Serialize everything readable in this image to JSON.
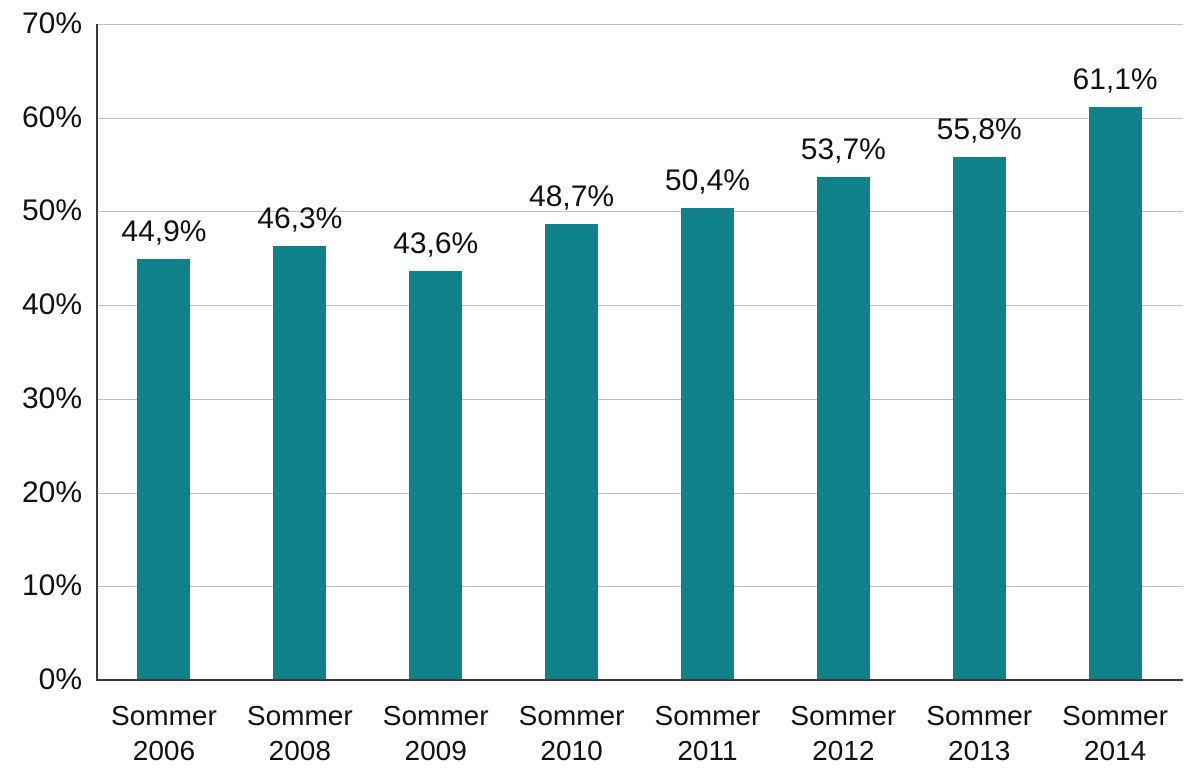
{
  "chart_data": {
    "type": "bar",
    "title": "",
    "xlabel": "",
    "ylabel": "",
    "categories": [
      "Sommer 2006",
      "Sommer 2008",
      "Sommer 2009",
      "Sommer 2010",
      "Sommer 2011",
      "Sommer 2012",
      "Sommer 2013",
      "Sommer 2014"
    ],
    "values": [
      44.9,
      46.3,
      43.6,
      48.7,
      50.4,
      53.7,
      55.8,
      61.1
    ],
    "value_labels": [
      "44,9%",
      "46,3%",
      "43,6%",
      "48,7%",
      "50,4%",
      "53,7%",
      "55,8%",
      "61,1%"
    ],
    "ylim": [
      0,
      70
    ],
    "ytick_step": 10,
    "ytick_labels": [
      "0%",
      "10%",
      "20%",
      "30%",
      "40%",
      "50%",
      "60%",
      "70%"
    ],
    "grid": true,
    "legend_position": "none",
    "colors": {
      "bar": "#0E8288",
      "gridline": "#BFBFBF",
      "axis": "#3A3A3A",
      "text": "#111111"
    }
  }
}
